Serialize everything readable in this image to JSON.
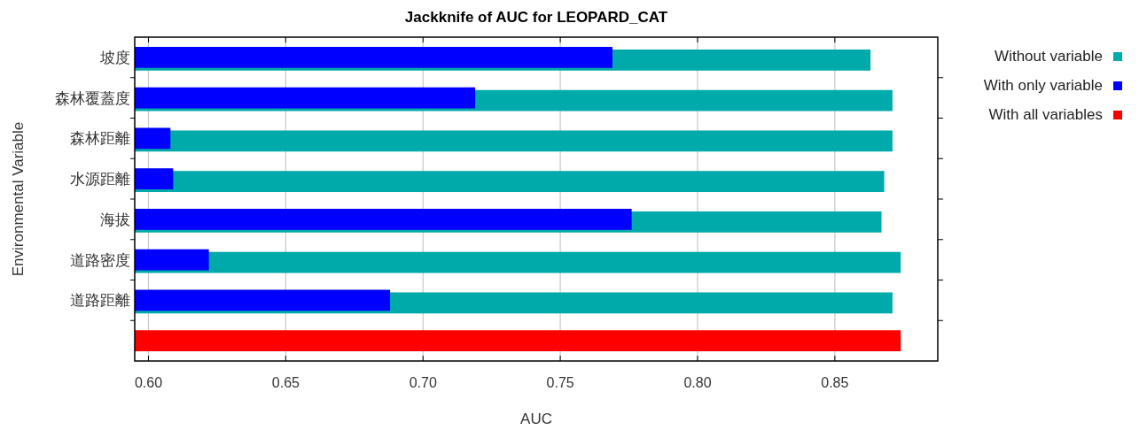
{
  "chart_data": {
    "type": "bar",
    "orientation": "horizontal",
    "title": "Jackknife of AUC for LEOPARD_CAT",
    "xlabel": "AUC",
    "ylabel": "Environmental Variable",
    "categories": [
      "坡度",
      "森林覆蓋度",
      "森林距離",
      "水源距離",
      "海拔",
      "道路密度",
      "道路距離",
      null
    ],
    "series": [
      {
        "name": "Without variable",
        "color": "#00aaaa",
        "values": [
          0.863,
          0.871,
          0.871,
          0.868,
          0.867,
          0.874,
          0.871,
          null
        ]
      },
      {
        "name": "With only variable",
        "color": "#0000ff",
        "values": [
          0.769,
          0.719,
          0.608,
          0.609,
          0.776,
          0.622,
          0.688,
          null
        ]
      },
      {
        "name": "With all variables",
        "color": "#ff0000",
        "values": [
          null,
          null,
          null,
          null,
          null,
          null,
          null,
          0.874
        ]
      }
    ],
    "xlim": [
      0.595,
      0.8875
    ],
    "xticks": [
      {
        "value": 0.6,
        "label": "0.60"
      },
      {
        "value": 0.65,
        "label": "0.65"
      },
      {
        "value": 0.7,
        "label": "0.70"
      },
      {
        "value": 0.75,
        "label": "0.75"
      },
      {
        "value": 0.8,
        "label": "0.80"
      },
      {
        "value": 0.85,
        "label": "0.85"
      }
    ],
    "grid": "x",
    "legend": "right"
  }
}
